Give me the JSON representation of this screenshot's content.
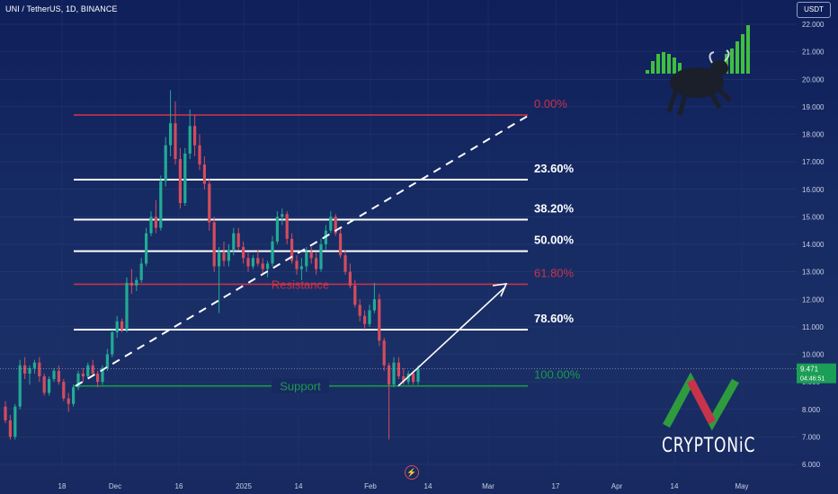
{
  "header": {
    "title": "UNI / TetherUS, 1D, BINANCE",
    "currency_button": "USDT"
  },
  "watermark": {
    "brand": "CRYPTONiC"
  },
  "colors": {
    "bull": "#22ab94",
    "bear": "#d44c5c",
    "fib_white": "#ffffff",
    "fib_red": "#c8324a",
    "support": "#1b9a4a",
    "price_tag": "#1b9e55"
  },
  "icons": {
    "flash": "lightning-icon",
    "bull_logo": "bull-icon",
    "brand_logo": "cryptonic-zigzag-logo"
  },
  "chart_data": {
    "type": "candlestick",
    "title": "UNI / TetherUS, 1D, BINANCE",
    "ylim": [
      5.5,
      22.5
    ],
    "y_ticks": [
      "22.000",
      "21.000",
      "20.000",
      "19.000",
      "18.000",
      "17.000",
      "16.000",
      "15.000",
      "14.000",
      "13.000",
      "12.000",
      "11.000",
      "10.000",
      "9.000",
      "8.000",
      "7.000",
      "6.000"
    ],
    "x_ticks": [
      "18",
      "Dec",
      "16",
      "2025",
      "14",
      "Feb",
      "14",
      "Mar",
      "17",
      "Apr",
      "14",
      "May"
    ],
    "last_price": "9.471",
    "countdown": "04:46:51",
    "fib_levels": [
      {
        "label": "0.00%",
        "value": 18.7,
        "color": "red"
      },
      {
        "label": "23.60%",
        "value": 16.35,
        "color": "white"
      },
      {
        "label": "38.20%",
        "value": 14.9,
        "color": "white"
      },
      {
        "label": "50.00%",
        "value": 13.75,
        "color": "white"
      },
      {
        "label": "61.80%",
        "value": 12.55,
        "color": "red"
      },
      {
        "label": "78.60%",
        "value": 10.9,
        "color": "white"
      },
      {
        "label": "100.00%",
        "value": 8.85,
        "color": "green"
      }
    ],
    "annotations": {
      "resistance": "Resistance",
      "support": "Support"
    },
    "ohlc": [
      [
        8.1,
        8.3,
        7.5,
        7.6
      ],
      [
        7.6,
        7.8,
        6.9,
        7.0
      ],
      [
        7.0,
        8.2,
        6.9,
        8.1
      ],
      [
        8.1,
        9.8,
        8.0,
        9.6
      ],
      [
        9.6,
        9.9,
        9.1,
        9.3
      ],
      [
        9.3,
        9.6,
        8.9,
        9.5
      ],
      [
        9.5,
        9.8,
        9.3,
        9.7
      ],
      [
        9.7,
        9.9,
        9.0,
        9.2
      ],
      [
        9.2,
        9.3,
        8.5,
        8.6
      ],
      [
        8.6,
        9.2,
        8.5,
        9.1
      ],
      [
        9.1,
        9.5,
        9.0,
        9.4
      ],
      [
        9.4,
        9.6,
        8.9,
        9.0
      ],
      [
        9.0,
        9.1,
        8.3,
        8.4
      ],
      [
        8.4,
        8.6,
        7.9,
        8.2
      ],
      [
        8.2,
        8.9,
        8.1,
        8.8
      ],
      [
        8.8,
        9.4,
        8.7,
        9.3
      ],
      [
        9.3,
        9.5,
        9.0,
        9.2
      ],
      [
        9.2,
        9.7,
        9.1,
        9.6
      ],
      [
        9.6,
        9.8,
        9.2,
        9.3
      ],
      [
        9.3,
        9.4,
        8.8,
        9.0
      ],
      [
        9.0,
        9.6,
        8.9,
        9.5
      ],
      [
        9.5,
        10.2,
        9.4,
        10.0
      ],
      [
        10.0,
        10.9,
        9.9,
        10.8
      ],
      [
        10.8,
        11.4,
        10.6,
        11.2
      ],
      [
        11.2,
        11.3,
        10.8,
        10.9
      ],
      [
        10.9,
        12.8,
        10.8,
        12.6
      ],
      [
        12.6,
        13.1,
        12.2,
        12.5
      ],
      [
        12.5,
        12.8,
        12.3,
        12.7
      ],
      [
        12.7,
        13.5,
        12.6,
        13.3
      ],
      [
        13.3,
        14.6,
        13.2,
        14.4
      ],
      [
        14.4,
        15.2,
        14.3,
        15.0
      ],
      [
        15.0,
        15.6,
        14.4,
        14.6
      ],
      [
        14.6,
        16.5,
        14.5,
        16.3
      ],
      [
        16.3,
        17.9,
        16.1,
        17.6
      ],
      [
        17.6,
        19.6,
        17.2,
        18.4
      ],
      [
        18.4,
        19.2,
        16.9,
        17.1
      ],
      [
        17.1,
        17.5,
        15.3,
        15.5
      ],
      [
        15.5,
        17.5,
        15.4,
        17.3
      ],
      [
        17.3,
        18.9,
        17.1,
        18.3
      ],
      [
        18.3,
        18.7,
        17.2,
        17.6
      ],
      [
        17.6,
        18.0,
        16.7,
        16.9
      ],
      [
        16.9,
        17.2,
        16.0,
        16.2
      ],
      [
        16.2,
        16.4,
        14.5,
        14.8
      ],
      [
        14.8,
        15.0,
        13.0,
        13.2
      ],
      [
        13.2,
        13.9,
        11.5,
        13.7
      ],
      [
        13.7,
        14.1,
        13.2,
        13.4
      ],
      [
        13.4,
        14.0,
        13.2,
        13.8
      ],
      [
        13.8,
        14.6,
        13.6,
        14.4
      ],
      [
        14.4,
        14.6,
        13.8,
        13.9
      ],
      [
        13.9,
        14.1,
        13.3,
        13.5
      ],
      [
        13.5,
        13.7,
        13.0,
        13.2
      ],
      [
        13.2,
        13.6,
        13.1,
        13.5
      ],
      [
        13.5,
        13.8,
        13.2,
        13.3
      ],
      [
        13.3,
        13.5,
        12.9,
        13.1
      ],
      [
        13.1,
        13.4,
        12.8,
        13.3
      ],
      [
        13.3,
        14.3,
        13.2,
        14.1
      ],
      [
        14.1,
        15.2,
        14.0,
        15.0
      ],
      [
        15.0,
        15.3,
        14.7,
        15.1
      ],
      [
        15.1,
        15.2,
        14.0,
        14.2
      ],
      [
        14.2,
        14.4,
        13.3,
        13.4
      ],
      [
        13.4,
        13.6,
        12.9,
        13.1
      ],
      [
        13.1,
        13.5,
        12.7,
        13.2
      ],
      [
        13.2,
        13.9,
        13.0,
        13.7
      ],
      [
        13.7,
        13.9,
        13.3,
        13.5
      ],
      [
        13.5,
        13.7,
        12.9,
        13.1
      ],
      [
        13.1,
        14.2,
        13.0,
        14.0
      ],
      [
        14.0,
        14.7,
        13.8,
        14.5
      ],
      [
        14.5,
        15.2,
        14.4,
        15.0
      ],
      [
        15.0,
        15.1,
        14.3,
        14.4
      ],
      [
        14.4,
        14.6,
        13.5,
        13.6
      ],
      [
        13.6,
        13.8,
        12.9,
        13.0
      ],
      [
        13.0,
        13.3,
        12.4,
        12.5
      ],
      [
        12.5,
        12.7,
        11.7,
        11.8
      ],
      [
        11.8,
        12.0,
        11.2,
        11.4
      ],
      [
        11.4,
        11.6,
        10.9,
        11.1
      ],
      [
        11.1,
        11.8,
        11.0,
        11.6
      ],
      [
        11.6,
        12.6,
        11.5,
        12.0
      ],
      [
        12.0,
        12.2,
        10.3,
        10.5
      ],
      [
        10.5,
        10.6,
        9.4,
        9.6
      ],
      [
        9.6,
        9.7,
        6.9,
        8.9
      ],
      [
        8.9,
        9.9,
        8.8,
        9.7
      ],
      [
        9.7,
        9.9,
        9.1,
        9.2
      ],
      [
        9.2,
        9.5,
        8.9,
        9.0
      ],
      [
        9.0,
        9.4,
        8.9,
        9.3
      ],
      [
        9.3,
        9.4,
        8.9,
        9.0
      ],
      [
        9.0,
        9.6,
        8.9,
        9.47
      ]
    ]
  }
}
